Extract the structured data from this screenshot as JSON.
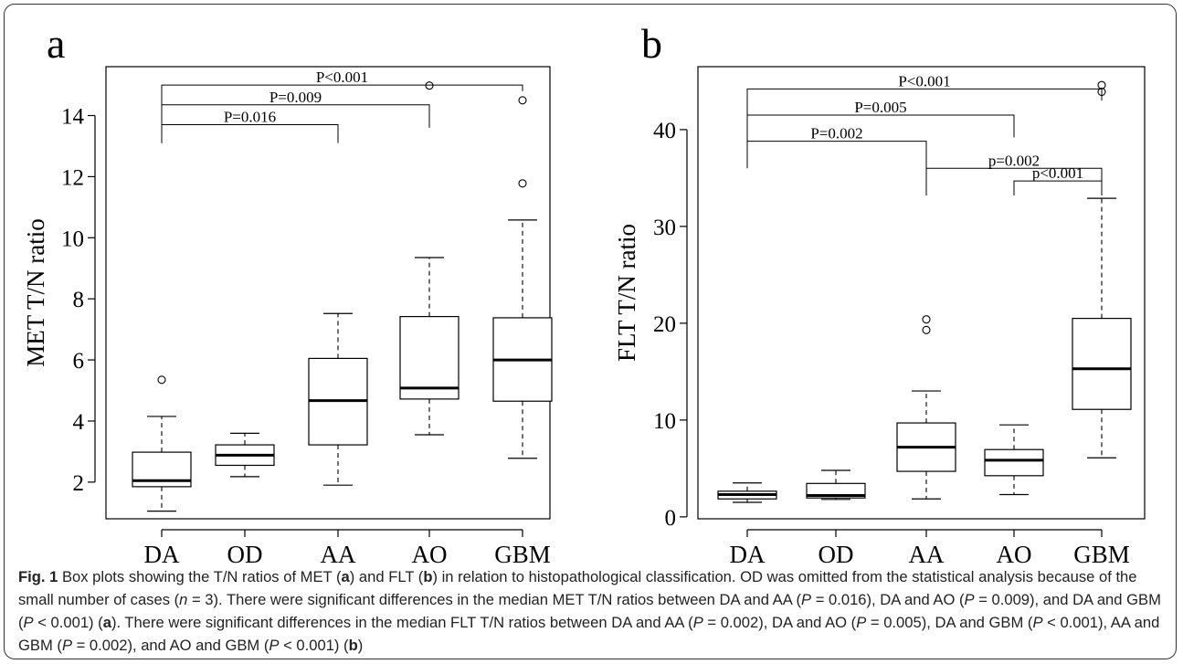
{
  "chart_data": [
    {
      "type": "box",
      "panel_letter": "a",
      "ylabel": "MET T/N ratio",
      "categories": [
        "DA",
        "OD",
        "AA",
        "AO",
        "GBM"
      ],
      "ylim": [
        0.8,
        15.6
      ],
      "yticks": [
        2,
        4,
        6,
        8,
        10,
        12,
        14
      ],
      "boxes": [
        {
          "category": "DA",
          "min": 1.05,
          "q1": 1.85,
          "median": 2.05,
          "q3": 2.98,
          "max": 4.15,
          "outliers": [
            5.35
          ]
        },
        {
          "category": "OD",
          "min": 2.18,
          "q1": 2.55,
          "median": 2.88,
          "q3": 3.22,
          "max": 3.6,
          "outliers": []
        },
        {
          "category": "AA",
          "min": 1.9,
          "q1": 3.22,
          "median": 4.67,
          "q3": 6.05,
          "max": 7.52,
          "outliers": []
        },
        {
          "category": "AO",
          "min": 3.55,
          "q1": 4.72,
          "median": 5.08,
          "q3": 7.42,
          "max": 9.35,
          "outliers": [
            14.98
          ]
        },
        {
          "category": "GBM",
          "min": 2.78,
          "q1": 4.65,
          "median": 6.0,
          "q3": 7.38,
          "max": 10.58,
          "outliers": [
            11.78,
            14.5
          ]
        }
      ],
      "comparisons": [
        {
          "from": "DA",
          "to": "GBM",
          "label": "P<0.001",
          "y": 15.0,
          "drop_from": 13.1,
          "drop_to": 14.8
        },
        {
          "from": "DA",
          "to": "AO",
          "label": "P=0.009",
          "y": 14.35,
          "drop_from": 13.1,
          "drop_to": 13.6
        },
        {
          "from": "DA",
          "to": "AA",
          "label": "P=0.016",
          "y": 13.7,
          "drop_from": 13.1,
          "drop_to": 13.1
        }
      ]
    },
    {
      "type": "box",
      "panel_letter": "b",
      "ylabel": "FLT T/N ratio",
      "categories": [
        "DA",
        "OD",
        "AA",
        "AO",
        "GBM"
      ],
      "ylim": [
        -0.2,
        46.5
      ],
      "yticks": [
        0,
        10,
        20,
        30,
        40
      ],
      "boxes": [
        {
          "category": "DA",
          "min": 1.5,
          "q1": 1.85,
          "median": 2.3,
          "q3": 2.65,
          "max": 3.5,
          "outliers": []
        },
        {
          "category": "OD",
          "min": 1.8,
          "q1": 1.95,
          "median": 2.2,
          "q3": 3.45,
          "max": 4.8,
          "outliers": []
        },
        {
          "category": "AA",
          "min": 1.85,
          "q1": 4.7,
          "median": 7.2,
          "q3": 9.7,
          "max": 13.0,
          "outliers": [
            19.3,
            20.4
          ]
        },
        {
          "category": "AO",
          "min": 2.3,
          "q1": 4.25,
          "median": 5.85,
          "q3": 6.95,
          "max": 9.5,
          "outliers": []
        },
        {
          "category": "GBM",
          "min": 6.1,
          "q1": 11.1,
          "median": 15.3,
          "q3": 20.5,
          "max": 32.9,
          "outliers": [
            43.9,
            44.6
          ]
        }
      ],
      "comparisons": [
        {
          "from": "DA",
          "to": "GBM",
          "label": "P<0.001",
          "y": 44.2,
          "drop_from": 38.8,
          "drop_to": 43.0
        },
        {
          "from": "DA",
          "to": "AO",
          "label": "P=0.005",
          "y": 41.5,
          "drop_from": 38.8,
          "drop_to": 39.2
        },
        {
          "from": "DA",
          "to": "AA",
          "label": "P=0.002",
          "y": 38.8,
          "drop_from": 36.0,
          "drop_to": 36.0
        },
        {
          "from": "AA",
          "to": "GBM",
          "label": "p=0.002",
          "y": 36.0,
          "drop_from": 33.2,
          "drop_to": 34.0
        },
        {
          "from": "AO",
          "to": "GBM",
          "label": "p<0.001",
          "y": 34.7,
          "drop_from": 33.2,
          "drop_to": 33.2
        }
      ]
    }
  ],
  "caption": {
    "fig_label": "Fig. 1",
    "segments": [
      {
        "text": " Box plots showing the T/N ratios of MET (",
        "style": "normal"
      },
      {
        "text": "a",
        "style": "bold"
      },
      {
        "text": ") and FLT (",
        "style": "normal"
      },
      {
        "text": "b",
        "style": "bold"
      },
      {
        "text": ") in relation to histopathological classification. OD was omitted from the statistical analysis because of the small number of cases (",
        "style": "normal"
      },
      {
        "text": "n",
        "style": "italic"
      },
      {
        "text": " = 3). There were significant differences in the median MET T/N ratios between DA and AA (",
        "style": "normal"
      },
      {
        "text": "P",
        "style": "italic"
      },
      {
        "text": " = 0.016), DA and AO (",
        "style": "normal"
      },
      {
        "text": "P",
        "style": "italic"
      },
      {
        "text": " = 0.009), and DA and GBM (",
        "style": "normal"
      },
      {
        "text": "P",
        "style": "italic"
      },
      {
        "text": " < 0.001) (",
        "style": "normal"
      },
      {
        "text": "a",
        "style": "bold"
      },
      {
        "text": "). There were significant differences in the median FLT T/N ratios between DA and AA (",
        "style": "normal"
      },
      {
        "text": "P",
        "style": "italic"
      },
      {
        "text": " = 0.002), DA and AO (",
        "style": "normal"
      },
      {
        "text": "P",
        "style": "italic"
      },
      {
        "text": " = 0.005), DA and GBM (",
        "style": "normal"
      },
      {
        "text": "P",
        "style": "italic"
      },
      {
        "text": " < 0.001), AA and GBM (",
        "style": "normal"
      },
      {
        "text": "P",
        "style": "italic"
      },
      {
        "text": " = 0.002), and AO and GBM (",
        "style": "normal"
      },
      {
        "text": "P",
        "style": "italic"
      },
      {
        "text": " < 0.001) (",
        "style": "normal"
      },
      {
        "text": "b",
        "style": "bold"
      },
      {
        "text": ")",
        "style": "normal"
      }
    ]
  }
}
